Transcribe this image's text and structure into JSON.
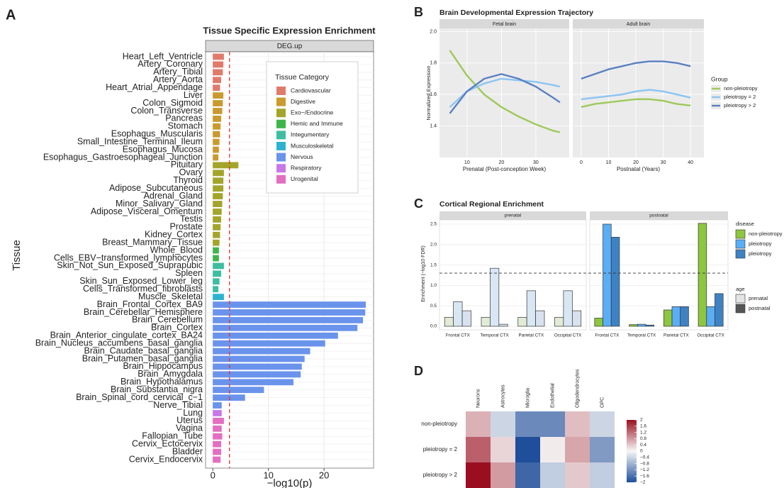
{
  "chart_data": [
    {
      "type": "barh",
      "panel": "A",
      "title": "Tissue Specific Expression Enrichment",
      "facet": "DEG.up",
      "xlabel": "−log10(p)",
      "ylabel": "Tissue",
      "categories": [
        "Heart_Left_Ventricle",
        "Artery_Coronary",
        "Artery_Tibial",
        "Artery_Aorta",
        "Heart_Atrial_Appendage",
        "Liver",
        "Colon_Sigmoid",
        "Colon_Transverse",
        "Pancreas",
        "Stomach",
        "Esophagus_Muscularis",
        "Small_Intestine_Terminal_Ileum",
        "Esophagus_Mucosa",
        "Esophagus_Gastroesophageal_Junction",
        "Pituitary",
        "Ovary",
        "Thyroid",
        "Adipose_Subcutaneous",
        "Adrenal_Gland",
        "Minor_Salivary_Gland",
        "Adipose_Visceral_Omentum",
        "Testis",
        "Prostate",
        "Kidney_Cortex",
        "Breast_Mammary_Tissue",
        "Whole_Blood",
        "Cells_EBV−transformed_lymphocytes",
        "Skin_Not_Sun_Exposed_Suprapubic",
        "Spleen",
        "Skin_Sun_Exposed_Lower_leg",
        "Cells_Transformed_fibroblasts",
        "Muscle_Skeletal",
        "Brain_Frontal_Cortex_BA9",
        "Brain_Cerebellar_Hemisphere",
        "Brain_Cerebellum",
        "Brain_Cortex",
        "Brain_Anterior_cingulate_cortex_BA24",
        "Brain_Nucleus_accumbens_basal_ganglia",
        "Brain_Caudate_basal_ganglia",
        "Brain_Putamen_basal_ganglia",
        "Brain_Hippocampus",
        "Brain_Amygdala",
        "Brain_Hypothalamus",
        "Brain_Substantia_nigra",
        "Brain_Spinal_cord_cervical_c−1",
        "Nerve_Tibial",
        "Lung",
        "Uterus",
        "Vagina",
        "Fallopian_Tube",
        "Cervix_Ectocervix",
        "Bladder",
        "Cervix_Endocervix"
      ],
      "values": [
        2.0,
        1.9,
        1.8,
        1.5,
        1.3,
        1.9,
        1.8,
        1.7,
        1.5,
        1.4,
        1.3,
        1.2,
        1.1,
        1.0,
        4.6,
        2.0,
        1.9,
        1.9,
        1.8,
        1.7,
        1.6,
        1.5,
        1.4,
        1.3,
        1.2,
        1.1,
        1.1,
        2.0,
        1.5,
        1.2,
        1.0,
        2.0,
        27.5,
        27.4,
        27.0,
        26.0,
        22.5,
        20.2,
        17.5,
        16.5,
        16.0,
        15.8,
        14.5,
        9.2,
        5.8,
        1.6,
        1.6,
        2.0,
        1.6,
        1.7,
        1.5,
        1.5,
        1.4
      ],
      "colors": [
        "#e07b6c",
        "#e07b6c",
        "#e07b6c",
        "#e07b6c",
        "#e07b6c",
        "#c99a2e",
        "#c99a2e",
        "#c99a2e",
        "#c99a2e",
        "#c99a2e",
        "#c99a2e",
        "#c99a2e",
        "#c99a2e",
        "#c99a2e",
        "#a3a52a",
        "#a3a52a",
        "#a3a52a",
        "#a3a52a",
        "#a3a52a",
        "#a3a52a",
        "#a3a52a",
        "#a3a52a",
        "#a3a52a",
        "#a3a52a",
        "#a3a52a",
        "#3db54a",
        "#3db54a",
        "#3dbea0",
        "#3dbea0",
        "#3dbea0",
        "#3dbea0",
        "#2db3d1",
        "#6a93ec",
        "#6a93ec",
        "#6a93ec",
        "#6a93ec",
        "#6a93ec",
        "#6a93ec",
        "#6a93ec",
        "#6a93ec",
        "#6a93ec",
        "#6a93ec",
        "#6a93ec",
        "#6a93ec",
        "#6a93ec",
        "#6a93ec",
        "#c978e8",
        "#e46ec0",
        "#e46ec0",
        "#e46ec0",
        "#e46ec0",
        "#e46ec0",
        "#e46ec0"
      ],
      "reference_line": 3,
      "reference_color": "#e8312f",
      "xlim": [
        -1.3,
        28.9
      ],
      "xticks": [
        0,
        10,
        20
      ],
      "grid": true,
      "legend_title": "Tissue Category",
      "legend": [
        {
          "name": "Cardiovascular",
          "color": "#e07b6c"
        },
        {
          "name": "Digestive",
          "color": "#c99a2e"
        },
        {
          "name": "Exo−/Endocrine",
          "color": "#a3a52a"
        },
        {
          "name": "Hemic and Immune",
          "color": "#3db54a"
        },
        {
          "name": "Integumentary",
          "color": "#3dbea0"
        },
        {
          "name": "Musculoskeletal",
          "color": "#2db3d1"
        },
        {
          "name": "Nervous",
          "color": "#6a93ec"
        },
        {
          "name": "Respiratory",
          "color": "#c978e8"
        },
        {
          "name": "Urogenital",
          "color": "#e46ec0"
        }
      ]
    },
    {
      "type": "line",
      "panel": "B",
      "title": "Brain Developmental Expression Trajectory",
      "ylabel": "Normalized Expression",
      "ylim": [
        1.2,
        2.02
      ],
      "yticks": [
        1.4,
        1.6,
        1.8,
        {
          "value": 2,
          "label": "2.0"
        }
      ],
      "grid": true,
      "legend_title": "Group",
      "series": [
        {
          "name": "non-pleiotropy",
          "color": "#9ec95a"
        },
        {
          "name": "pleiotropy = 2",
          "color": "#8cc4f2"
        },
        {
          "name": "pleiotropy > 2",
          "color": "#5b80c2"
        }
      ],
      "facets": [
        {
          "title": "Fetal brain",
          "xlabel": "Prenatal (Post-conception Week)",
          "x": [
            5,
            10,
            15,
            20,
            25,
            30,
            35,
            37
          ],
          "xlim": [
            2,
            39.7
          ],
          "xticks": [
            10,
            20,
            30
          ],
          "values": [
            [
              1.88,
              1.72,
              1.6,
              1.52,
              1.46,
              1.41,
              1.37,
              1.36
            ],
            [
              1.52,
              1.62,
              1.67,
              1.7,
              1.69,
              1.68,
              1.66,
              1.65
            ],
            [
              1.48,
              1.62,
              1.7,
              1.73,
              1.7,
              1.65,
              1.58,
              1.55
            ]
          ]
        },
        {
          "title": "Adult brain",
          "xlabel": "Postnatal (Years)",
          "x": [
            0,
            5,
            10,
            15,
            20,
            25,
            30,
            35,
            40
          ],
          "xlim": [
            -3.1,
            44.9
          ],
          "xticks": [
            0,
            10,
            20,
            30,
            40
          ],
          "values": [
            [
              1.52,
              1.54,
              1.55,
              1.56,
              1.57,
              1.57,
              1.56,
              1.54,
              1.53
            ],
            [
              1.57,
              1.58,
              1.59,
              1.6,
              1.62,
              1.63,
              1.62,
              1.6,
              1.58
            ],
            [
              1.7,
              1.73,
              1.76,
              1.78,
              1.8,
              1.81,
              1.81,
              1.8,
              1.78
            ]
          ]
        }
      ]
    },
    {
      "type": "groupbar",
      "panel": "C",
      "title": "Cortical Regional Enrichment",
      "ylabel": "Enrichment (−log10 FDR)",
      "categories": [
        "Frontal CTX",
        "Temporal CTX",
        "Parietal CTX",
        "Occipital CTX"
      ],
      "ylim": [
        -0.087,
        2.604
      ],
      "yticks": [
        {
          "value": 0,
          "label": "0.0"
        },
        0.5,
        {
          "value": 1,
          "label": "1.0"
        },
        1.5,
        {
          "value": 2,
          "label": "2.0"
        },
        2.5
      ],
      "grid": true,
      "reference_line": 1.3,
      "legend_title": "disease",
      "series": [
        {
          "name": "non-pleiotropy",
          "color": "#8dc63f"
        },
        {
          "name": "pleiotropy",
          "color": "#5aaef5"
        },
        {
          "name": "pleiotropy",
          "color": "#3f82c4"
        }
      ],
      "age_title": "age",
      "age_legend": [
        {
          "name": "prenatal",
          "color": "#e4e4e4"
        },
        {
          "name": "postnatal",
          "color": "#555555"
        }
      ],
      "facets": [
        {
          "title": "prenatal",
          "colors": [
            "#e2ebd5",
            "#d9e7f4",
            "#d8e2ee"
          ],
          "values": [
            [
              0.22,
              0.22,
              0.22,
              0.22
            ],
            [
              0.6,
              1.42,
              0.87,
              0.87
            ],
            [
              0.38,
              0.05,
              0.38,
              0.38
            ]
          ]
        },
        {
          "title": "postnatal",
          "colors": [
            "#8dc63f",
            "#5aaef5",
            "#3f82c4"
          ],
          "values": [
            [
              0.2,
              0.04,
              0.4,
              2.52
            ],
            [
              2.5,
              0.05,
              0.48,
              0.48
            ],
            [
              2.18,
              0.03,
              0.48,
              0.8
            ]
          ]
        }
      ]
    },
    {
      "type": "heatmap",
      "panel": "D",
      "rows": [
        "non-pleiotropy",
        "pleiotropy = 2",
        "pleiotropy > 2"
      ],
      "columns": [
        "Neurons",
        "Astrocytes",
        "Microglia",
        "Endothelial",
        "Oligodendrocytes",
        "OPC"
      ],
      "values": [
        [
          0.6,
          -0.4,
          -1.3,
          -1.3,
          0.5,
          -0.4
        ],
        [
          1.3,
          0.3,
          -2.0,
          0.1,
          0.7,
          -1.1
        ],
        [
          2.0,
          0.8,
          -1.7,
          -0.5,
          0.4,
          -0.5
        ]
      ],
      "zlim": [
        -2,
        2
      ],
      "zticks": [
        2,
        1.6,
        1.2,
        0.8,
        0.4,
        0,
        {
          "value": -0.4,
          "label": "−0.4"
        },
        {
          "value": -0.8,
          "label": "−0.8"
        },
        {
          "value": -1.2,
          "label": "−1.2"
        },
        {
          "value": -1.6,
          "label": "−1.6"
        },
        {
          "value": -2,
          "label": "−2"
        }
      ],
      "colorscale": [
        "#1f4e9a",
        "#f7f7f7",
        "#9a0f1f"
      ]
    }
  ]
}
